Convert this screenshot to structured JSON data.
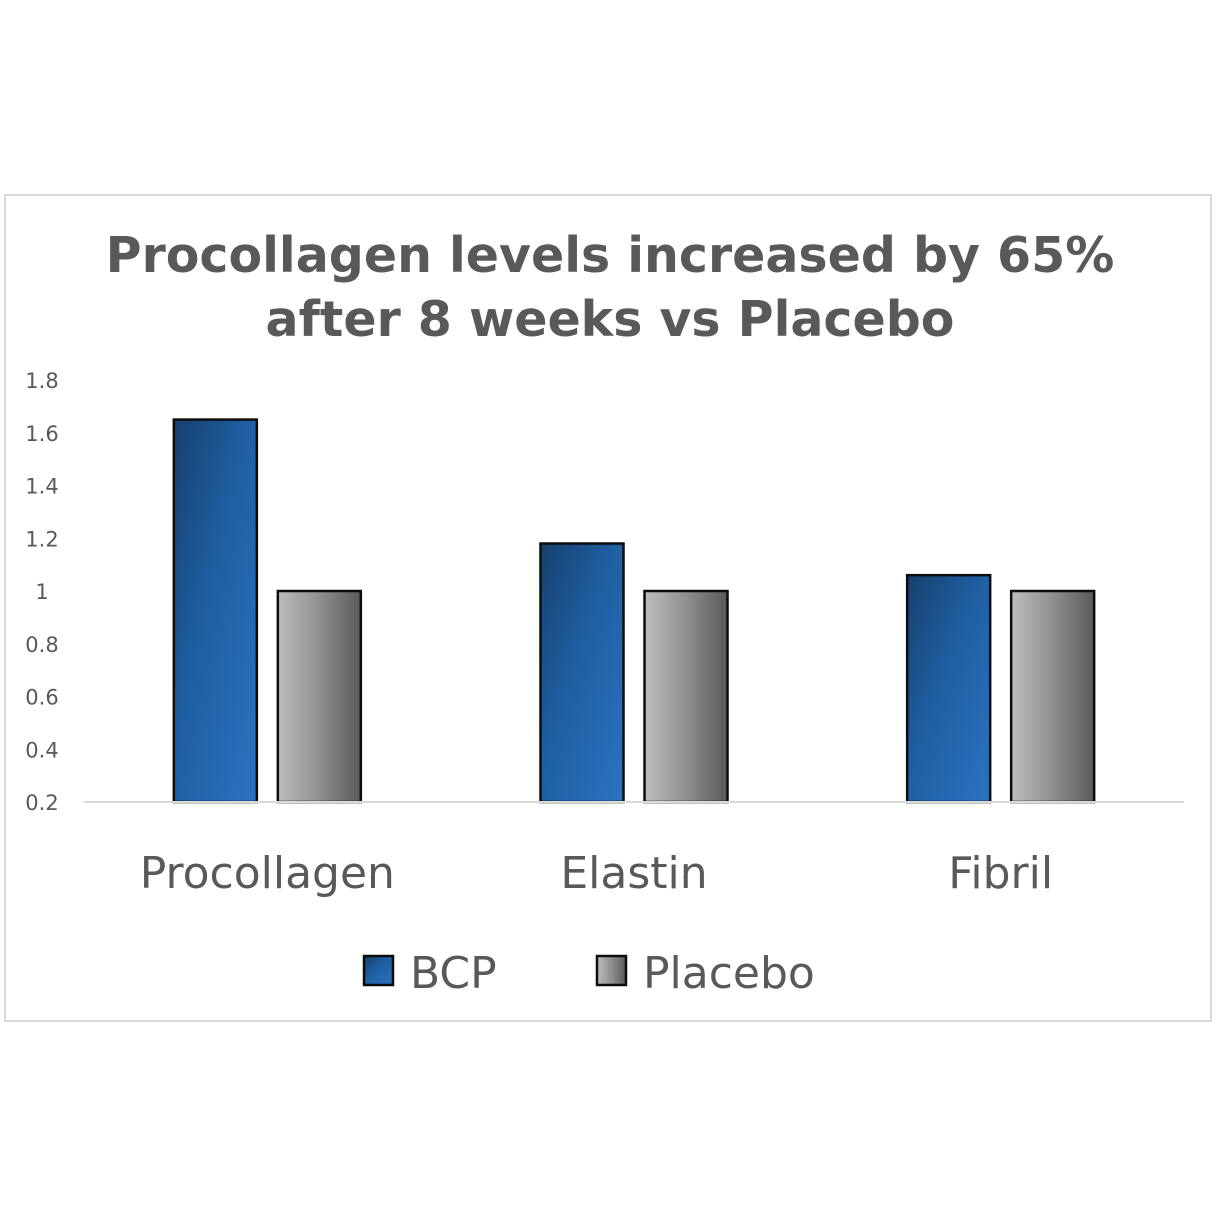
{
  "chart_data": {
    "type": "bar",
    "title_lines": [
      "Procollagen levels increased by 65%",
      "after 8 weeks vs Placebo"
    ],
    "categories": [
      "Procollagen",
      "Elastin",
      "Fibril"
    ],
    "series": [
      {
        "name": "BCP",
        "values": [
          1.65,
          1.18,
          1.06
        ],
        "color": "#1f5fa3"
      },
      {
        "name": "Placebo",
        "values": [
          1.0,
          1.0,
          1.0
        ],
        "color": "#8c8c8c"
      }
    ],
    "yticks": [
      "0.2",
      "0.4",
      "0.6",
      "0.8",
      "1",
      "1.2",
      "1.4",
      "1.6",
      "1.8"
    ],
    "ylim": [
      0.2,
      1.8
    ],
    "grid": false,
    "legend_position": "bottom",
    "xlabel": "",
    "ylabel": ""
  }
}
